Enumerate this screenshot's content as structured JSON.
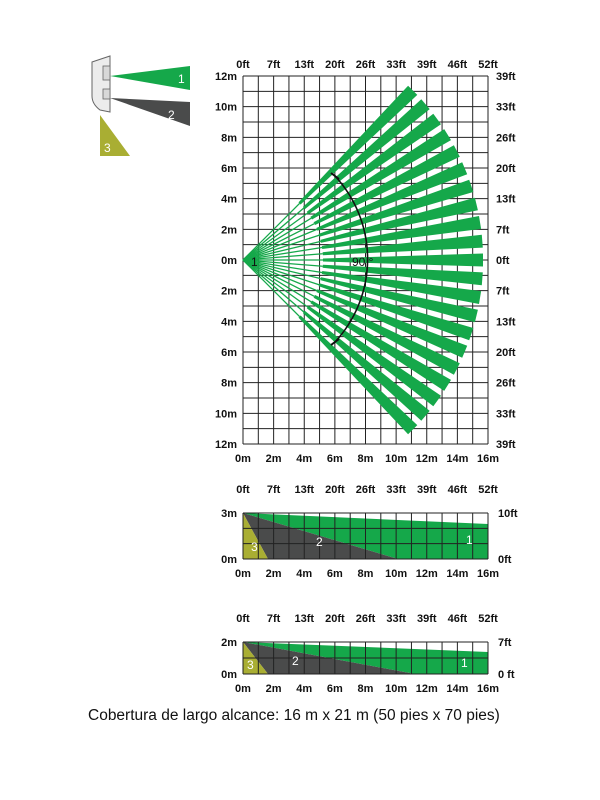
{
  "colors": {
    "zone1": "#15a84a",
    "zone2": "#4a4b4b",
    "zone3": "#a9ae33",
    "grid": "#222222"
  },
  "icon": {
    "name": "detector-icon"
  },
  "zones": [
    {
      "number": "1",
      "color": "#15a84a"
    },
    {
      "number": "2",
      "color": "#4a4b4b"
    },
    {
      "number": "3",
      "color": "#a9ae33"
    }
  ],
  "top_view": {
    "ft_top": [
      "0ft",
      "7ft",
      "13ft",
      "20ft",
      "26ft",
      "33ft",
      "39ft",
      "46ft",
      "52ft"
    ],
    "m_bottom": [
      "0m",
      "2m",
      "4m",
      "6m",
      "8m",
      "10m",
      "12m",
      "14m",
      "16m"
    ],
    "m_left": [
      "12m",
      "10m",
      "8m",
      "6m",
      "4m",
      "2m",
      "0m",
      "2m",
      "4m",
      "6m",
      "8m",
      "10m",
      "12m"
    ],
    "ft_right": [
      "39ft",
      "33ft",
      "26ft",
      "20ft",
      "13ft",
      "7ft",
      "0ft",
      "7ft",
      "13ft",
      "20ft",
      "26ft",
      "33ft",
      "39ft"
    ],
    "origin_label": "1",
    "angle_label": "90 °"
  },
  "side_view_1": {
    "ft_top": [
      "0ft",
      "7ft",
      "13ft",
      "20ft",
      "26ft",
      "33ft",
      "39ft",
      "46ft",
      "52ft"
    ],
    "m_bottom": [
      "0m",
      "2m",
      "4m",
      "6m",
      "8m",
      "10m",
      "12m",
      "14m",
      "16m"
    ],
    "m_left": [
      "3m",
      "0m"
    ],
    "ft_right": [
      "10ft",
      "0ft"
    ]
  },
  "side_view_2": {
    "ft_top": [
      "0ft",
      "7ft",
      "13ft",
      "20ft",
      "26ft",
      "33ft",
      "39ft",
      "46ft",
      "52ft"
    ],
    "m_bottom": [
      "0m",
      "2m",
      "4m",
      "6m",
      "8m",
      "10m",
      "12m",
      "14m",
      "16m"
    ],
    "m_left": [
      "2m",
      "0m"
    ],
    "ft_right": [
      "7ft",
      "0 ft"
    ]
  },
  "caption": "Cobertura de largo alcance: 16 m x 21 m (50 pies x 70 pies)"
}
